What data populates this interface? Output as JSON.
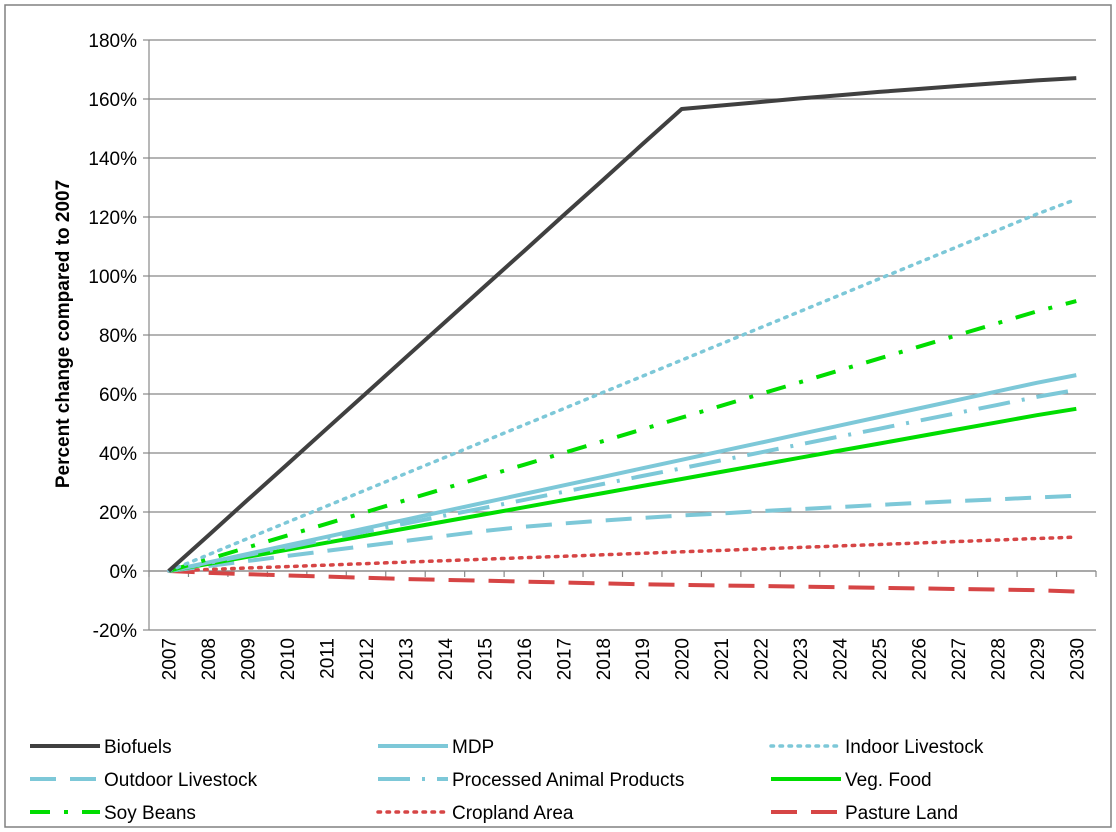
{
  "chart_data": {
    "type": "line",
    "title": "",
    "xlabel": "",
    "ylabel": "Percent change compared to 2007",
    "ylim": [
      -20,
      180
    ],
    "yticks": [
      "-20%",
      "0%",
      "20%",
      "40%",
      "60%",
      "80%",
      "100%",
      "120%",
      "140%",
      "160%",
      "180%"
    ],
    "categories": [
      "2007",
      "2008",
      "2009",
      "2010",
      "2011",
      "2012",
      "2013",
      "2014",
      "2015",
      "2016",
      "2017",
      "2018",
      "2019",
      "2020",
      "2021",
      "2022",
      "2023",
      "2024",
      "2025",
      "2026",
      "2027",
      "2028",
      "2029",
      "2030"
    ],
    "grid": "horizontal",
    "legend_position": "bottom",
    "series": [
      {
        "name": "Biofuels",
        "color": "#404040",
        "style": "solid",
        "values": [
          0,
          12.0,
          24.1,
          36.1,
          48.2,
          60.2,
          72.3,
          84.3,
          96.4,
          108.4,
          120.5,
          132.5,
          144.6,
          156.6,
          157.8,
          159.0,
          160.2,
          161.3,
          162.4,
          163.4,
          164.4,
          165.4,
          166.3,
          167.1
        ]
      },
      {
        "name": "MDP",
        "color": "#7dc8d8",
        "style": "solid",
        "values": [
          0,
          2.9,
          5.8,
          8.7,
          11.6,
          14.5,
          17.4,
          20.3,
          23.2,
          26.1,
          29.0,
          31.9,
          34.8,
          37.7,
          40.6,
          43.5,
          46.4,
          49.3,
          52.2,
          55.1,
          58.0,
          60.9,
          63.8,
          66.4
        ]
      },
      {
        "name": "Indoor Livestock",
        "color": "#7dc8d8",
        "style": "dotted",
        "values": [
          0,
          5.5,
          11.0,
          16.5,
          22.0,
          27.5,
          33.0,
          38.5,
          44.0,
          49.5,
          55.0,
          60.5,
          66.0,
          71.5,
          77.0,
          82.5,
          88.0,
          93.5,
          99.0,
          104.5,
          110.0,
          115.5,
          121.0,
          126.0
        ]
      },
      {
        "name": "Outdoor Livestock",
        "color": "#7dc8d8",
        "style": "dashed",
        "values": [
          0,
          1.7,
          3.4,
          5.1,
          6.8,
          8.5,
          10.2,
          11.9,
          13.6,
          15.0,
          16.1,
          17.1,
          18.0,
          18.8,
          19.5,
          20.3,
          21.0,
          21.7,
          22.4,
          23.1,
          23.7,
          24.3,
          24.9,
          25.5
        ]
      },
      {
        "name": "Processed Animal Products",
        "color": "#7dc8d8",
        "style": "longdashdot",
        "values": [
          0,
          2.7,
          5.4,
          8.0,
          10.7,
          13.4,
          16.1,
          18.8,
          21.4,
          24.1,
          26.8,
          29.5,
          32.2,
          34.8,
          37.5,
          40.2,
          42.9,
          45.6,
          48.2,
          50.9,
          53.6,
          56.3,
          59.0,
          61.4
        ]
      },
      {
        "name": "Veg. Food",
        "color": "#00dd00",
        "style": "solid",
        "values": [
          0,
          2.4,
          4.8,
          7.2,
          9.6,
          12.0,
          14.4,
          16.8,
          19.2,
          21.6,
          24.0,
          26.4,
          28.8,
          31.2,
          33.6,
          36.0,
          38.4,
          40.8,
          43.2,
          45.6,
          48.0,
          50.4,
          52.8,
          55.0
        ]
      },
      {
        "name": "Soy Beans",
        "color": "#00dd00",
        "style": "dashdot",
        "values": [
          0,
          4.0,
          8.0,
          12.0,
          16.0,
          20.0,
          24.0,
          28.0,
          32.0,
          36.0,
          40.0,
          44.0,
          48.0,
          52.0,
          56.0,
          60.0,
          64.0,
          68.0,
          72.0,
          76.0,
          80.0,
          84.0,
          88.0,
          91.5
        ]
      },
      {
        "name": "Cropland Area",
        "color": "#d64545",
        "style": "dotted",
        "values": [
          0,
          0.5,
          1.0,
          1.5,
          2.0,
          2.5,
          3.0,
          3.5,
          4.0,
          4.5,
          5.0,
          5.5,
          6.0,
          6.5,
          7.0,
          7.5,
          8.0,
          8.5,
          9.0,
          9.5,
          10.0,
          10.5,
          11.0,
          11.5
        ]
      },
      {
        "name": "Pasture Land",
        "color": "#d64545",
        "style": "dashed",
        "values": [
          0,
          -0.6,
          -1.1,
          -1.5,
          -1.9,
          -2.3,
          -2.7,
          -3.0,
          -3.3,
          -3.6,
          -3.9,
          -4.2,
          -4.5,
          -4.7,
          -4.9,
          -5.1,
          -5.3,
          -5.5,
          -5.7,
          -5.9,
          -6.1,
          -6.3,
          -6.5,
          -7.0
        ]
      }
    ]
  }
}
